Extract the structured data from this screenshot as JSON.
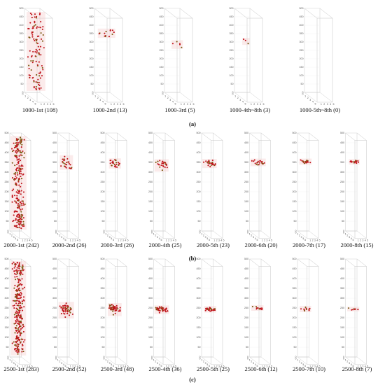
{
  "chart_data": [
    {
      "type": "scatter",
      "title": "",
      "panels": [
        {
          "caption": "1000-1st (108)",
          "count": 108,
          "z_center": 250,
          "z_spread": 200
        },
        {
          "caption": "1000-2nd (13)",
          "count": 13,
          "z_center": 360,
          "z_spread": 45
        },
        {
          "caption": "1000-3rd (5)",
          "count": 5,
          "z_center": 300,
          "z_spread": 35
        },
        {
          "caption": "1000-4th~8th (3)",
          "count": 3,
          "z_center": 320,
          "z_spread": 40
        },
        {
          "caption": "1000-5th~8th (0)",
          "count": 0,
          "z_center": 300,
          "z_spread": 0
        }
      ],
      "row_label": "(a)",
      "zlim": [
        0,
        500
      ],
      "z_ticks": [
        "0",
        "50",
        "100",
        "150",
        "200",
        "250",
        "300",
        "350",
        "400",
        "450",
        "500"
      ],
      "x_ticks": [
        "0",
        "1",
        "2",
        "3",
        "4",
        "5"
      ],
      "y_ticks": [
        "0",
        "1",
        "2",
        "3",
        "4",
        "5"
      ],
      "grid": true,
      "point_color": "#c0151c"
    },
    {
      "type": "scatter",
      "title": "",
      "panels": [
        {
          "caption": "2000-1st (242)",
          "count": 242,
          "z_center": 260,
          "z_spread": 210
        },
        {
          "caption": "2000-2nd (26)",
          "count": 26,
          "z_center": 355,
          "z_spread": 35
        },
        {
          "caption": "2000-3rd (26)",
          "count": 26,
          "z_center": 350,
          "z_spread": 20
        },
        {
          "caption": "2000-4th (25)",
          "count": 25,
          "z_center": 350,
          "z_spread": 18
        },
        {
          "caption": "2000-5th (23)",
          "count": 23,
          "z_center": 350,
          "z_spread": 15
        },
        {
          "caption": "2000-6th (20)",
          "count": 20,
          "z_center": 355,
          "z_spread": 12
        },
        {
          "caption": "2000-7th (17)",
          "count": 17,
          "z_center": 358,
          "z_spread": 8
        },
        {
          "caption": "2000-8th (15)",
          "count": 15,
          "z_center": 360,
          "z_spread": 6
        }
      ],
      "row_label": "(b)",
      "zlim": [
        0,
        500
      ],
      "z_ticks": [
        "0",
        "50",
        "100",
        "150",
        "200",
        "250",
        "300",
        "350",
        "400",
        "450",
        "500"
      ],
      "x_ticks": [
        "0",
        "1",
        "2",
        "3",
        "4",
        "5"
      ],
      "y_ticks": [
        "0",
        "1",
        "2",
        "3",
        "4",
        "5"
      ],
      "grid": true,
      "point_color": "#c0151c"
    },
    {
      "type": "scatter",
      "title": "",
      "panels": [
        {
          "caption": "2500-1st (283)",
          "count": 283,
          "z_center": 260,
          "z_spread": 200
        },
        {
          "caption": "2500-2nd (52)",
          "count": 52,
          "z_center": 245,
          "z_spread": 30
        },
        {
          "caption": "2500-3rd (48)",
          "count": 48,
          "z_center": 250,
          "z_spread": 25
        },
        {
          "caption": "2500-4th (36)",
          "count": 36,
          "z_center": 250,
          "z_spread": 15
        },
        {
          "caption": "2500-5th (25)",
          "count": 25,
          "z_center": 250,
          "z_spread": 10
        },
        {
          "caption": "2500-6th (12)",
          "count": 12,
          "z_center": 252,
          "z_spread": 10
        },
        {
          "caption": "2500-7th (10)",
          "count": 10,
          "z_center": 250,
          "z_spread": 8
        },
        {
          "caption": "2500-8th (7)",
          "count": 7,
          "z_center": 250,
          "z_spread": 8
        }
      ],
      "row_label": "(c)",
      "zlim": [
        0,
        500
      ],
      "z_ticks": [
        "0",
        "50",
        "100",
        "150",
        "200",
        "250",
        "300",
        "350",
        "400",
        "450",
        "500"
      ],
      "x_ticks": [
        "0",
        "1",
        "2",
        "3",
        "4",
        "5"
      ],
      "y_ticks": [
        "0",
        "1",
        "2",
        "3",
        "4",
        "5"
      ],
      "grid": true,
      "point_color": "#c0151c"
    }
  ]
}
